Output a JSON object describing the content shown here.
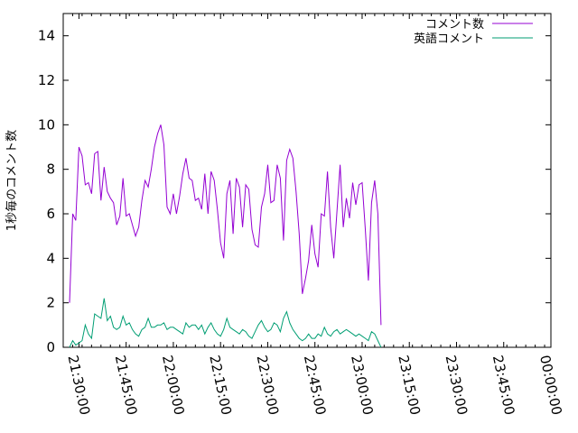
{
  "chart_data": {
    "type": "line",
    "ylabel": "1秒毎のコメント数",
    "ylim": [
      0,
      15
    ],
    "yticks": [
      0,
      2,
      4,
      6,
      8,
      10,
      12,
      14
    ],
    "xlim": [
      "21:25:00",
      "00:00:00"
    ],
    "xticks": [
      "21:30:00",
      "21:45:00",
      "22:00:00",
      "22:15:00",
      "22:30:00",
      "22:45:00",
      "23:00:00",
      "23:15:00",
      "23:30:00",
      "23:45:00",
      "00:00:00"
    ],
    "legend_position": "top-right",
    "grid": false,
    "series": [
      {
        "name": "コメント数",
        "color": "#9400d3",
        "points": [
          [
            "21:27:00",
            2.0
          ],
          [
            "21:28:00",
            6.0
          ],
          [
            "21:29:00",
            5.7
          ],
          [
            "21:30:00",
            9.0
          ],
          [
            "21:31:00",
            8.6
          ],
          [
            "21:32:00",
            7.3
          ],
          [
            "21:33:00",
            7.4
          ],
          [
            "21:34:00",
            6.9
          ],
          [
            "21:35:00",
            8.7
          ],
          [
            "21:36:00",
            8.8
          ],
          [
            "21:37:00",
            6.6
          ],
          [
            "21:38:00",
            8.1
          ],
          [
            "21:39:00",
            7.0
          ],
          [
            "21:40:00",
            6.7
          ],
          [
            "21:41:00",
            6.5
          ],
          [
            "21:42:00",
            5.5
          ],
          [
            "21:43:00",
            5.9
          ],
          [
            "21:44:00",
            7.6
          ],
          [
            "21:45:00",
            5.9
          ],
          [
            "21:46:00",
            6.0
          ],
          [
            "21:47:00",
            5.5
          ],
          [
            "21:48:00",
            5.0
          ],
          [
            "21:49:00",
            5.4
          ],
          [
            "21:50:00",
            6.6
          ],
          [
            "21:51:00",
            7.5
          ],
          [
            "21:52:00",
            7.2
          ],
          [
            "21:53:00",
            8.0
          ],
          [
            "21:54:00",
            9.0
          ],
          [
            "21:55:00",
            9.6
          ],
          [
            "21:56:00",
            10.0
          ],
          [
            "21:57:00",
            9.1
          ],
          [
            "21:58:00",
            6.3
          ],
          [
            "21:59:00",
            6.0
          ],
          [
            "22:00:00",
            6.9
          ],
          [
            "22:01:00",
            6.0
          ],
          [
            "22:02:00",
            6.8
          ],
          [
            "22:03:00",
            7.8
          ],
          [
            "22:04:00",
            8.5
          ],
          [
            "22:05:00",
            7.6
          ],
          [
            "22:06:00",
            7.5
          ],
          [
            "22:07:00",
            6.6
          ],
          [
            "22:08:00",
            6.7
          ],
          [
            "22:09:00",
            6.2
          ],
          [
            "22:10:00",
            7.8
          ],
          [
            "22:11:00",
            6.0
          ],
          [
            "22:12:00",
            7.9
          ],
          [
            "22:13:00",
            7.5
          ],
          [
            "22:14:00",
            6.2
          ],
          [
            "22:15:00",
            4.7
          ],
          [
            "22:16:00",
            4.0
          ],
          [
            "22:17:00",
            6.9
          ],
          [
            "22:18:00",
            7.5
          ],
          [
            "22:19:00",
            5.1
          ],
          [
            "22:20:00",
            7.6
          ],
          [
            "22:21:00",
            7.2
          ],
          [
            "22:22:00",
            5.4
          ],
          [
            "22:23:00",
            7.3
          ],
          [
            "22:24:00",
            7.1
          ],
          [
            "22:25:00",
            5.3
          ],
          [
            "22:26:00",
            4.6
          ],
          [
            "22:27:00",
            4.5
          ],
          [
            "22:28:00",
            6.3
          ],
          [
            "22:29:00",
            6.9
          ],
          [
            "22:30:00",
            8.2
          ],
          [
            "22:31:00",
            6.5
          ],
          [
            "22:32:00",
            6.6
          ],
          [
            "22:33:00",
            8.2
          ],
          [
            "22:34:00",
            7.6
          ],
          [
            "22:35:00",
            4.8
          ],
          [
            "22:36:00",
            8.4
          ],
          [
            "22:37:00",
            8.9
          ],
          [
            "22:38:00",
            8.5
          ],
          [
            "22:39:00",
            7.0
          ],
          [
            "22:40:00",
            5.1
          ],
          [
            "22:41:00",
            2.4
          ],
          [
            "22:42:00",
            3.1
          ],
          [
            "22:43:00",
            3.9
          ],
          [
            "22:44:00",
            5.5
          ],
          [
            "22:45:00",
            4.2
          ],
          [
            "22:46:00",
            3.6
          ],
          [
            "22:47:00",
            6.0
          ],
          [
            "22:48:00",
            5.9
          ],
          [
            "22:49:00",
            7.9
          ],
          [
            "22:50:00",
            5.4
          ],
          [
            "22:51:00",
            4.0
          ],
          [
            "22:52:00",
            6.1
          ],
          [
            "22:53:00",
            8.2
          ],
          [
            "22:54:00",
            5.4
          ],
          [
            "22:55:00",
            6.7
          ],
          [
            "22:56:00",
            5.8
          ],
          [
            "22:57:00",
            7.4
          ],
          [
            "22:58:00",
            6.4
          ],
          [
            "22:59:00",
            7.3
          ],
          [
            "23:00:00",
            7.4
          ],
          [
            "23:01:00",
            5.3
          ],
          [
            "23:02:00",
            3.0
          ],
          [
            "23:03:00",
            6.5
          ],
          [
            "23:04:00",
            7.5
          ],
          [
            "23:05:00",
            6.0
          ],
          [
            "23:06:00",
            1.0
          ]
        ]
      },
      {
        "name": "英語コメント",
        "color": "#009e73",
        "points": [
          [
            "21:27:00",
            0.0
          ],
          [
            "21:28:00",
            0.3
          ],
          [
            "21:29:00",
            0.1
          ],
          [
            "21:30:00",
            0.2
          ],
          [
            "21:31:00",
            0.3
          ],
          [
            "21:32:00",
            1.0
          ],
          [
            "21:33:00",
            0.6
          ],
          [
            "21:34:00",
            0.4
          ],
          [
            "21:35:00",
            1.5
          ],
          [
            "21:36:00",
            1.4
          ],
          [
            "21:37:00",
            1.3
          ],
          [
            "21:38:00",
            2.2
          ],
          [
            "21:39:00",
            1.2
          ],
          [
            "21:40:00",
            1.4
          ],
          [
            "21:41:00",
            0.9
          ],
          [
            "21:42:00",
            0.8
          ],
          [
            "21:43:00",
            0.9
          ],
          [
            "21:44:00",
            1.4
          ],
          [
            "21:45:00",
            1.0
          ],
          [
            "21:46:00",
            1.1
          ],
          [
            "21:47:00",
            0.8
          ],
          [
            "21:48:00",
            0.6
          ],
          [
            "21:49:00",
            0.5
          ],
          [
            "21:50:00",
            0.8
          ],
          [
            "21:51:00",
            0.9
          ],
          [
            "21:52:00",
            1.3
          ],
          [
            "21:53:00",
            0.9
          ],
          [
            "21:54:00",
            0.9
          ],
          [
            "21:55:00",
            1.0
          ],
          [
            "21:56:00",
            1.0
          ],
          [
            "21:57:00",
            1.1
          ],
          [
            "21:58:00",
            0.8
          ],
          [
            "21:59:00",
            0.9
          ],
          [
            "22:00:00",
            0.9
          ],
          [
            "22:01:00",
            0.8
          ],
          [
            "22:02:00",
            0.7
          ],
          [
            "22:03:00",
            0.6
          ],
          [
            "22:04:00",
            1.1
          ],
          [
            "22:05:00",
            0.9
          ],
          [
            "22:06:00",
            1.0
          ],
          [
            "22:07:00",
            1.0
          ],
          [
            "22:08:00",
            0.8
          ],
          [
            "22:09:00",
            1.0
          ],
          [
            "22:10:00",
            0.6
          ],
          [
            "22:11:00",
            0.9
          ],
          [
            "22:12:00",
            1.1
          ],
          [
            "22:13:00",
            0.8
          ],
          [
            "22:14:00",
            0.6
          ],
          [
            "22:15:00",
            0.5
          ],
          [
            "22:16:00",
            0.8
          ],
          [
            "22:17:00",
            1.3
          ],
          [
            "22:18:00",
            0.9
          ],
          [
            "22:19:00",
            0.8
          ],
          [
            "22:20:00",
            0.7
          ],
          [
            "22:21:00",
            0.6
          ],
          [
            "22:22:00",
            0.8
          ],
          [
            "22:23:00",
            0.7
          ],
          [
            "22:24:00",
            0.5
          ],
          [
            "22:25:00",
            0.4
          ],
          [
            "22:26:00",
            0.7
          ],
          [
            "22:27:00",
            1.0
          ],
          [
            "22:28:00",
            1.2
          ],
          [
            "22:29:00",
            0.9
          ],
          [
            "22:30:00",
            0.7
          ],
          [
            "22:31:00",
            0.8
          ],
          [
            "22:32:00",
            1.1
          ],
          [
            "22:33:00",
            1.0
          ],
          [
            "22:34:00",
            0.7
          ],
          [
            "22:35:00",
            1.3
          ],
          [
            "22:36:00",
            1.6
          ],
          [
            "22:37:00",
            1.1
          ],
          [
            "22:38:00",
            0.8
          ],
          [
            "22:39:00",
            0.6
          ],
          [
            "22:40:00",
            0.4
          ],
          [
            "22:41:00",
            0.3
          ],
          [
            "22:42:00",
            0.4
          ],
          [
            "22:43:00",
            0.6
          ],
          [
            "22:44:00",
            0.4
          ],
          [
            "22:45:00",
            0.4
          ],
          [
            "22:46:00",
            0.6
          ],
          [
            "22:47:00",
            0.5
          ],
          [
            "22:48:00",
            0.9
          ],
          [
            "22:49:00",
            0.6
          ],
          [
            "22:50:00",
            0.5
          ],
          [
            "22:51:00",
            0.7
          ],
          [
            "22:52:00",
            0.8
          ],
          [
            "22:53:00",
            0.6
          ],
          [
            "22:54:00",
            0.7
          ],
          [
            "22:55:00",
            0.8
          ],
          [
            "22:56:00",
            0.7
          ],
          [
            "22:57:00",
            0.6
          ],
          [
            "22:58:00",
            0.5
          ],
          [
            "22:59:00",
            0.6
          ],
          [
            "23:00:00",
            0.5
          ],
          [
            "23:01:00",
            0.4
          ],
          [
            "23:02:00",
            0.3
          ],
          [
            "23:03:00",
            0.7
          ],
          [
            "23:04:00",
            0.6
          ],
          [
            "23:05:00",
            0.3
          ],
          [
            "23:06:00",
            0.0
          ]
        ]
      }
    ]
  }
}
